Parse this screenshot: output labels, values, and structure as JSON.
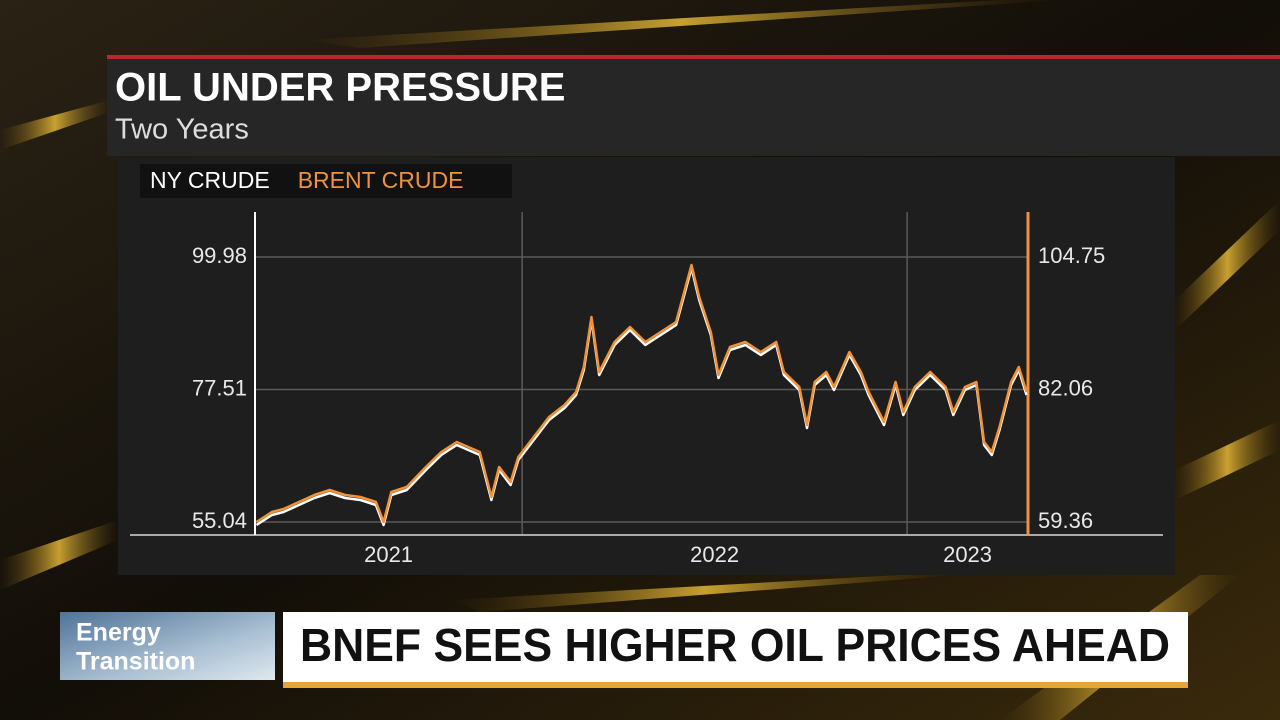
{
  "chart_data": {
    "type": "line",
    "title": "OIL UNDER PRESSURE",
    "subtitle": "Two Years",
    "x": [
      2021.31,
      2021.35,
      2021.38,
      2021.42,
      2021.46,
      2021.5,
      2021.54,
      2021.58,
      2021.62,
      2021.64,
      2021.66,
      2021.7,
      2021.72,
      2021.75,
      2021.79,
      2021.83,
      2021.86,
      2021.89,
      2021.92,
      2021.94,
      2021.97,
      2021.99,
      2022.03,
      2022.07,
      2022.11,
      2022.14,
      2022.16,
      2022.18,
      2022.2,
      2022.24,
      2022.28,
      2022.32,
      2022.36,
      2022.4,
      2022.44,
      2022.46,
      2022.49,
      2022.51,
      2022.54,
      2022.58,
      2022.62,
      2022.66,
      2022.68,
      2022.72,
      2022.74,
      2022.76,
      2022.79,
      2022.81,
      2022.85,
      2022.88,
      2022.9,
      2022.94,
      2022.97,
      2022.99,
      2023.02,
      2023.06,
      2023.1,
      2023.12,
      2023.15,
      2023.18,
      2023.2,
      2023.22,
      2023.24,
      2023.27,
      2023.29,
      2023.31
    ],
    "series": [
      {
        "name": "NY CRUDE",
        "color": "#ffffff",
        "values": [
          54.53,
          56.23,
          56.74,
          57.92,
          59.11,
          59.96,
          59.11,
          58.77,
          57.92,
          54.53,
          59.62,
          60.47,
          61.82,
          63.86,
          66.4,
          68.1,
          67.25,
          66.4,
          58.77,
          63.86,
          61.31,
          65.55,
          68.95,
          72.34,
          74.37,
          76.58,
          80.82,
          89.29,
          79.97,
          85.06,
          87.6,
          85.06,
          86.75,
          88.45,
          98.11,
          92.69,
          86.75,
          79.46,
          84.21,
          85.06,
          83.36,
          85.06,
          79.97,
          77.42,
          70.98,
          78.27,
          79.97,
          77.42,
          83.36,
          79.97,
          76.58,
          71.49,
          78.27,
          73.18,
          77.42,
          79.97,
          77.42,
          73.18,
          77.42,
          78.27,
          68.1,
          66.4,
          70.64,
          78.27,
          80.82,
          76.58
        ]
      },
      {
        "name": "BRENT CRUDE",
        "color": "#f0923a",
        "axis": "y2",
        "values": [
          59.36,
          61.07,
          61.59,
          62.79,
          63.98,
          64.84,
          63.98,
          63.64,
          62.79,
          59.36,
          64.5,
          65.36,
          66.73,
          68.78,
          71.35,
          73.06,
          72.21,
          71.35,
          63.64,
          68.78,
          66.21,
          70.49,
          73.92,
          77.35,
          79.4,
          81.63,
          85.91,
          94.47,
          85.05,
          90.19,
          92.76,
          90.19,
          91.91,
          93.62,
          103.38,
          97.9,
          91.91,
          84.54,
          89.34,
          90.19,
          88.48,
          90.19,
          85.05,
          82.48,
          75.98,
          83.34,
          85.05,
          82.48,
          88.48,
          85.05,
          81.63,
          76.49,
          83.34,
          78.2,
          82.48,
          85.05,
          82.48,
          78.2,
          82.48,
          83.34,
          73.06,
          71.35,
          75.63,
          83.34,
          85.91,
          81.63
        ]
      }
    ],
    "xlim": [
      2021.306,
      2023.314
    ],
    "xticks": [
      {
        "value": 2021,
        "label": "2021"
      },
      {
        "value": 2022,
        "label": "2022"
      },
      {
        "value": 2023,
        "label": "2023"
      }
    ],
    "ylim": [
      52.84,
      107.61
    ],
    "yticks": [
      55.04,
      77.51,
      99.98
    ],
    "y2lim": [
      57.13,
      112.46
    ],
    "y2ticks": [
      59.36,
      82.06,
      104.75
    ],
    "grid": true
  },
  "lower_third": {
    "tag": [
      "Energy",
      "Transition"
    ],
    "headline": "BNEF SEES HIGHER OIL PRICES AHEAD"
  }
}
